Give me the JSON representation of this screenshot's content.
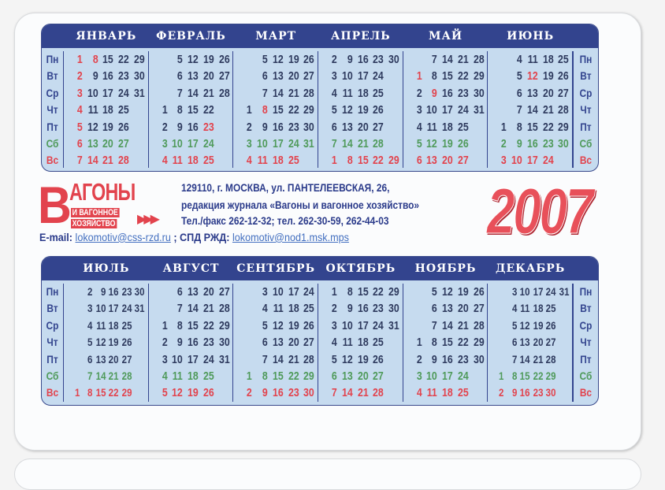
{
  "weekdays": [
    "Пн",
    "Вт",
    "Ср",
    "Чт",
    "Пт",
    "Сб",
    "Вс"
  ],
  "colors": {
    "header": "#33448e",
    "body": "#c6dbef",
    "weekend_saturday": "#4f9a5a",
    "holiday_sunday": "#e2434d"
  },
  "months": [
    {
      "name": "ЯНВАРЬ",
      "rows": [
        [
          1,
          8,
          15,
          22,
          29
        ],
        [
          2,
          9,
          16,
          23,
          30
        ],
        [
          3,
          10,
          17,
          24,
          31
        ],
        [
          4,
          11,
          18,
          25
        ],
        [
          5,
          12,
          19,
          26
        ],
        [
          6,
          13,
          20,
          27
        ],
        [
          7,
          14,
          21,
          28
        ]
      ],
      "holidays": [
        1,
        2,
        3,
        4,
        5,
        6,
        8
      ]
    },
    {
      "name": "ФЕВРАЛЬ",
      "rows": [
        [
          "",
          5,
          12,
          19,
          26
        ],
        [
          "",
          6,
          13,
          20,
          27
        ],
        [
          "",
          7,
          14,
          21,
          28
        ],
        [
          1,
          8,
          15,
          22
        ],
        [
          2,
          9,
          16,
          23
        ],
        [
          3,
          10,
          17,
          24
        ],
        [
          4,
          11,
          18,
          25
        ]
      ],
      "holidays": [
        23
      ]
    },
    {
      "name": "МАРТ",
      "rows": [
        [
          "",
          5,
          12,
          19,
          26
        ],
        [
          "",
          6,
          13,
          20,
          27
        ],
        [
          "",
          7,
          14,
          21,
          28
        ],
        [
          1,
          8,
          15,
          22,
          29
        ],
        [
          2,
          9,
          16,
          23,
          30
        ],
        [
          3,
          10,
          17,
          24,
          31
        ],
        [
          4,
          11,
          18,
          25
        ]
      ],
      "holidays": [
        8
      ]
    },
    {
      "name": "АПРЕЛЬ",
      "rows": [
        [
          2,
          9,
          16,
          23,
          30
        ],
        [
          3,
          10,
          17,
          24
        ],
        [
          4,
          11,
          18,
          25
        ],
        [
          5,
          12,
          19,
          26
        ],
        [
          6,
          13,
          20,
          27
        ],
        [
          7,
          14,
          21,
          28
        ],
        [
          1,
          8,
          15,
          22,
          29
        ]
      ],
      "holidays": []
    },
    {
      "name": "МАЙ",
      "rows": [
        [
          "",
          7,
          14,
          21,
          28
        ],
        [
          1,
          8,
          15,
          22,
          29
        ],
        [
          2,
          9,
          16,
          23,
          30
        ],
        [
          3,
          10,
          17,
          24,
          31
        ],
        [
          4,
          11,
          18,
          25
        ],
        [
          5,
          12,
          19,
          26
        ],
        [
          6,
          13,
          20,
          27
        ]
      ],
      "holidays": [
        1,
        9
      ]
    },
    {
      "name": "ИЮНЬ",
      "rows": [
        [
          "",
          4,
          11,
          18,
          25
        ],
        [
          "",
          5,
          12,
          19,
          26
        ],
        [
          "",
          6,
          13,
          20,
          27
        ],
        [
          "",
          7,
          14,
          21,
          28
        ],
        [
          1,
          8,
          15,
          22,
          29
        ],
        [
          2,
          9,
          16,
          23,
          30
        ],
        [
          3,
          10,
          17,
          24
        ]
      ],
      "holidays": [
        12
      ]
    },
    {
      "name": "ИЮЛЬ",
      "rows": [
        [
          "",
          2,
          9,
          16,
          23,
          30
        ],
        [
          "",
          3,
          10,
          17,
          24,
          31
        ],
        [
          "",
          4,
          11,
          18,
          25
        ],
        [
          "",
          5,
          12,
          19,
          26
        ],
        [
          "",
          6,
          13,
          20,
          27
        ],
        [
          "",
          7,
          14,
          21,
          28
        ],
        [
          1,
          8,
          15,
          22,
          29
        ]
      ],
      "holidays": []
    },
    {
      "name": "АВГУСТ",
      "rows": [
        [
          "",
          6,
          13,
          20,
          27
        ],
        [
          "",
          7,
          14,
          21,
          28
        ],
        [
          1,
          8,
          15,
          22,
          29
        ],
        [
          2,
          9,
          16,
          23,
          30
        ],
        [
          3,
          10,
          17,
          24,
          31
        ],
        [
          4,
          11,
          18,
          25
        ],
        [
          5,
          12,
          19,
          26
        ]
      ],
      "holidays": []
    },
    {
      "name": "СЕНТЯБРЬ",
      "rows": [
        [
          "",
          3,
          10,
          17,
          24
        ],
        [
          "",
          4,
          11,
          18,
          25
        ],
        [
          "",
          5,
          12,
          19,
          26
        ],
        [
          "",
          6,
          13,
          20,
          27
        ],
        [
          "",
          7,
          14,
          21,
          28
        ],
        [
          1,
          8,
          15,
          22,
          29
        ],
        [
          2,
          9,
          16,
          23,
          30
        ]
      ],
      "holidays": []
    },
    {
      "name": "ОКТЯБРЬ",
      "rows": [
        [
          1,
          8,
          15,
          22,
          29
        ],
        [
          2,
          9,
          16,
          23,
          30
        ],
        [
          3,
          10,
          17,
          24,
          31
        ],
        [
          4,
          11,
          18,
          25
        ],
        [
          5,
          12,
          19,
          26
        ],
        [
          6,
          13,
          20,
          27
        ],
        [
          7,
          14,
          21,
          28
        ]
      ],
      "holidays": []
    },
    {
      "name": "НОЯБРЬ",
      "rows": [
        [
          "",
          5,
          12,
          19,
          26
        ],
        [
          "",
          6,
          13,
          20,
          27
        ],
        [
          "",
          7,
          14,
          21,
          28
        ],
        [
          1,
          8,
          15,
          22,
          29
        ],
        [
          2,
          9,
          16,
          23,
          30
        ],
        [
          3,
          10,
          17,
          24
        ],
        [
          4,
          11,
          18,
          25
        ]
      ],
      "holidays": []
    },
    {
      "name": "ДЕКАБРЬ",
      "rows": [
        [
          "",
          3,
          10,
          17,
          24,
          31
        ],
        [
          "",
          4,
          11,
          18,
          25
        ],
        [
          "",
          5,
          12,
          19,
          26
        ],
        [
          "",
          6,
          13,
          20,
          27
        ],
        [
          "",
          7,
          14,
          21,
          28
        ],
        [
          1,
          8,
          15,
          22,
          29
        ],
        [
          2,
          9,
          16,
          23,
          30
        ]
      ],
      "holidays": []
    }
  ],
  "logo": {
    "big_letter": "В",
    "word": "АГОНЫ",
    "line1": "И ВАГОННОЕ",
    "line2": "ХОЗЯЙСТВО",
    "arrows": "▶▶▶"
  },
  "address": {
    "line1": "129110, г. МОСКВА, ул. ПАНТЕЛЕЕВСКАЯ, 26,",
    "line2": "редакция журнала «Вагоны и вагонное хозяйство»",
    "line3": "Тел./факс 262-12-32; тел. 262-30-59, 262-44-03"
  },
  "contacts": {
    "email_label": "E-mail:",
    "email": "lokomotiv@css-rzd.ru",
    "spd_label": "; СПД РЖД:",
    "spd": "lokomotiv@nod1.msk.mps"
  },
  "year": "2007"
}
